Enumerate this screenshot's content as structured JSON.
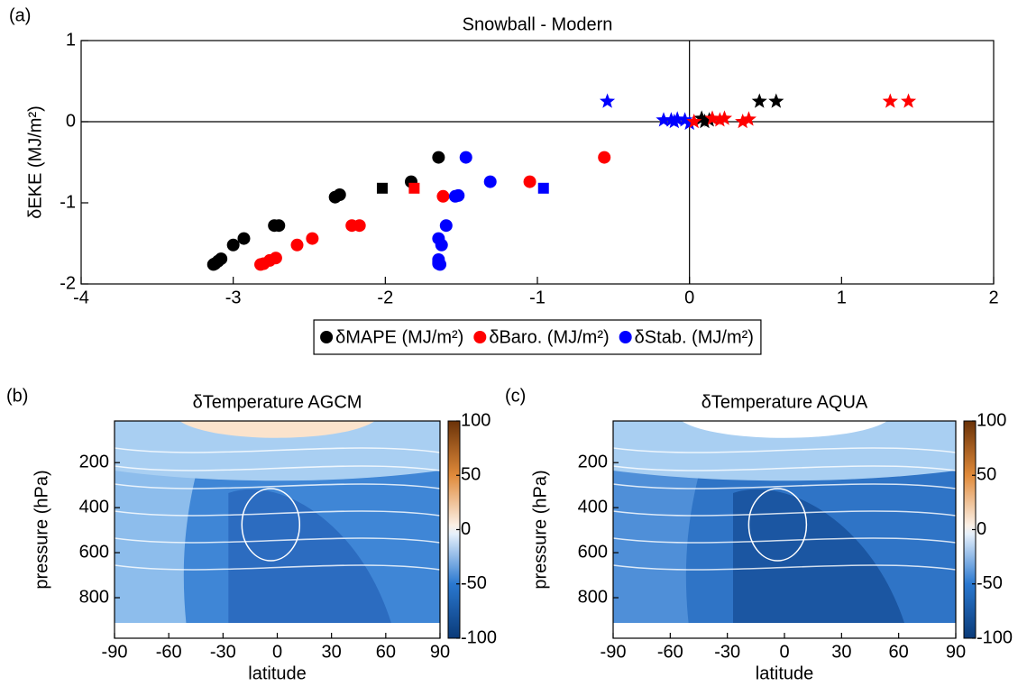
{
  "chart_data": [
    {
      "type": "scatter",
      "panel_label": "(a)",
      "title": "Snowball - Modern",
      "y_label": "δEKE (MJ/m²)",
      "xlim": [
        -4,
        2
      ],
      "xticks": [
        -4,
        -3,
        -2,
        -1,
        0,
        1,
        2
      ],
      "ylim": [
        -2,
        1
      ],
      "yticks": [
        -2,
        -1,
        0,
        1
      ],
      "legend": "bottom",
      "series": [
        {
          "name": "δMAPE (MJ/m²)",
          "color": "#000000",
          "marker": "circle",
          "x": [
            -1.65,
            -1.83,
            -2.3,
            -2.33,
            -2.7,
            -2.73,
            -2.93,
            -3.0,
            -3.08,
            -3.1,
            -3.12,
            -3.13
          ],
          "values": [
            -0.44,
            -0.74,
            -0.9,
            -0.93,
            -1.28,
            -1.28,
            -1.44,
            -1.52,
            -1.69,
            -1.72,
            -1.75,
            -1.76
          ]
        },
        {
          "name": "δBaro. (MJ/m²)",
          "color": "#ff0000",
          "marker": "circle",
          "x": [
            -0.56,
            -1.05,
            -1.62,
            -2.17,
            -2.22,
            -2.48,
            -2.58,
            -2.72,
            -2.76,
            -2.8,
            -2.82
          ],
          "values": [
            -0.44,
            -0.74,
            -0.92,
            -1.28,
            -1.28,
            -1.44,
            -1.52,
            -1.68,
            -1.71,
            -1.75,
            -1.76
          ]
        },
        {
          "name": "δStab. (MJ/m²)",
          "color": "#0000ff",
          "marker": "circle",
          "x": [
            -1.47,
            -1.31,
            -1.54,
            -1.52,
            -1.6,
            -1.65,
            -1.63,
            -1.65,
            -1.65,
            -1.65,
            -1.64
          ],
          "values": [
            -0.44,
            -0.74,
            -0.92,
            -0.91,
            -1.28,
            -1.44,
            -1.52,
            -1.7,
            -1.73,
            -1.75,
            -1.76
          ]
        },
        {
          "color": "#000000",
          "marker": "square",
          "x": [
            -2.02
          ],
          "values": [
            -0.82
          ]
        },
        {
          "color": "#ff0000",
          "marker": "square",
          "x": [
            -1.81
          ],
          "values": [
            -0.82
          ]
        },
        {
          "color": "#0000ff",
          "marker": "square",
          "x": [
            -0.96
          ],
          "values": [
            -0.82
          ]
        },
        {
          "color": "#0000ff",
          "marker": "star",
          "x": [
            -0.54,
            -0.17,
            -0.12,
            -0.08,
            -0.03,
            0.0,
            -0.1
          ],
          "values": [
            0.25,
            0.02,
            0.02,
            0.03,
            0.02,
            -0.02,
            0.0
          ]
        },
        {
          "color": "#000000",
          "marker": "star",
          "x": [
            0.46,
            0.57,
            0.08,
            0.1,
            0.13
          ],
          "values": [
            0.25,
            0.25,
            0.04,
            0.0,
            0.02
          ]
        },
        {
          "color": "#ff0000",
          "marker": "star",
          "x": [
            1.32,
            1.44,
            0.15,
            0.2,
            0.23,
            0.35,
            0.39,
            0.03
          ],
          "values": [
            0.25,
            0.25,
            0.04,
            0.02,
            0.04,
            0.0,
            0.03,
            0.0
          ]
        }
      ]
    },
    {
      "type": "contour",
      "panel_label": "(b)",
      "title": "δTemperature AGCM",
      "x_label": "latitude",
      "y_label": "pressure (hPa)",
      "xlim": [
        -90,
        90
      ],
      "xticks": [
        -90,
        -60,
        -30,
        0,
        30,
        60,
        90
      ],
      "ylim": [
        980,
        15
      ],
      "yticks": [
        200,
        400,
        600,
        800
      ],
      "clim": [
        -100,
        100
      ],
      "cticks": [
        -100,
        -50,
        0,
        50,
        100
      ]
    },
    {
      "type": "contour",
      "panel_label": "(c)",
      "title": "δTemperature AQUA",
      "x_label": "latitude",
      "y_label": "pressure (hPa)",
      "xlim": [
        -90,
        90
      ],
      "xticks": [
        -90,
        -60,
        -30,
        0,
        30,
        60,
        90
      ],
      "ylim": [
        980,
        15
      ],
      "yticks": [
        200,
        400,
        600,
        800
      ],
      "clim": [
        -100,
        100
      ],
      "cticks": [
        -100,
        -50,
        0,
        50,
        100
      ]
    }
  ]
}
